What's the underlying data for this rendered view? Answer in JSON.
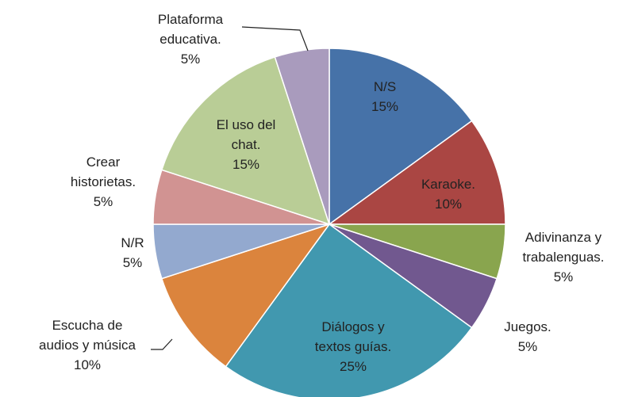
{
  "chart_data": {
    "type": "pie",
    "categories": [
      "N/S",
      "Karaoke.",
      "Adivinanza y trabalenguas.",
      "Juegos.",
      "Diálogos y textos guías.",
      "Escucha de audios y música",
      "N/R",
      "Crear historietas.",
      "El uso del chat.",
      "Plataforma educativa."
    ],
    "values": [
      15,
      10,
      5,
      5,
      25,
      10,
      5,
      5,
      15,
      5
    ],
    "value_labels": [
      "15%",
      "10%",
      "5%",
      "5%",
      "25%",
      "10%",
      "5%",
      "5%",
      "15%",
      "5%"
    ],
    "colors": [
      "#4672a8",
      "#aa4643",
      "#89a54e",
      "#71588f",
      "#4198af",
      "#db843d",
      "#93a9cf",
      "#d19392",
      "#b9cd96",
      "#a99bbd"
    ]
  }
}
